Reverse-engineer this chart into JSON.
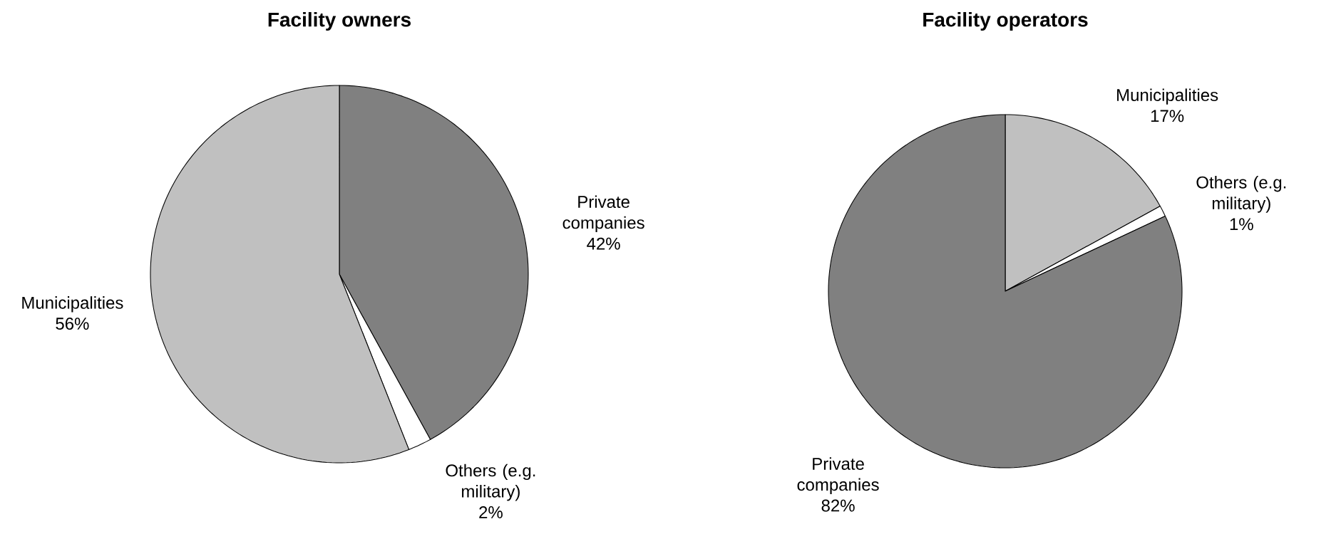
{
  "chart_data": [
    {
      "type": "pie",
      "title": "Facility owners",
      "categories": [
        "Private companies",
        "Others (e.g. military)",
        "Municipalities"
      ],
      "values": [
        42,
        2,
        56
      ],
      "value_labels": [
        "42%",
        "2%",
        "56%"
      ],
      "colors": [
        "#808080",
        "#ffffff",
        "#c0c0c0"
      ]
    },
    {
      "type": "pie",
      "title": "Facility operators",
      "categories": [
        "Municipalities",
        "Others (e.g. military)",
        "Private companies"
      ],
      "values": [
        17,
        1,
        82
      ],
      "value_labels": [
        "17%",
        "1%",
        "82%"
      ],
      "colors": [
        "#c0c0c0",
        "#ffffff",
        "#808080"
      ]
    }
  ]
}
